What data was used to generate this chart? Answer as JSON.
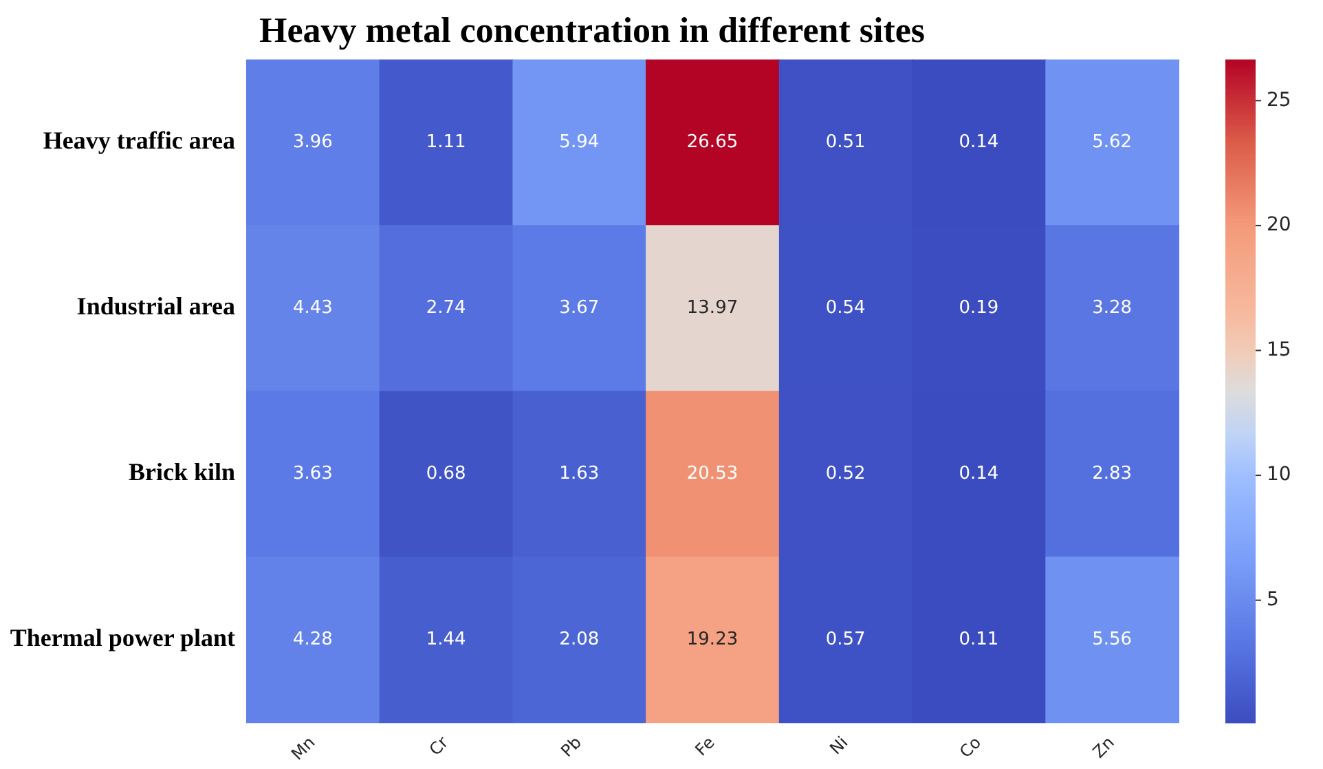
{
  "chart_data": {
    "type": "heatmap",
    "title": "Heavy metal concentration in different sites",
    "categories": [
      "Mn",
      "Cr",
      "Pb",
      "Fe",
      "Ni",
      "Co",
      "Zn"
    ],
    "y_categories": [
      "Heavy traffic area",
      "Industrial area",
      "Brick kiln",
      "Thermal power plant"
    ],
    "cells": [
      [
        3.96,
        1.11,
        5.94,
        26.65,
        0.51,
        0.14,
        5.62
      ],
      [
        4.43,
        2.74,
        3.67,
        13.97,
        0.54,
        0.19,
        3.28
      ],
      [
        3.63,
        0.68,
        1.63,
        20.53,
        0.52,
        0.14,
        2.83
      ],
      [
        4.28,
        1.44,
        2.08,
        19.23,
        0.57,
        0.11,
        5.56
      ]
    ],
    "data_labels": true,
    "clim": [
      0.11,
      26.65
    ],
    "cticks": [
      5,
      10,
      15,
      20,
      25
    ]
  }
}
